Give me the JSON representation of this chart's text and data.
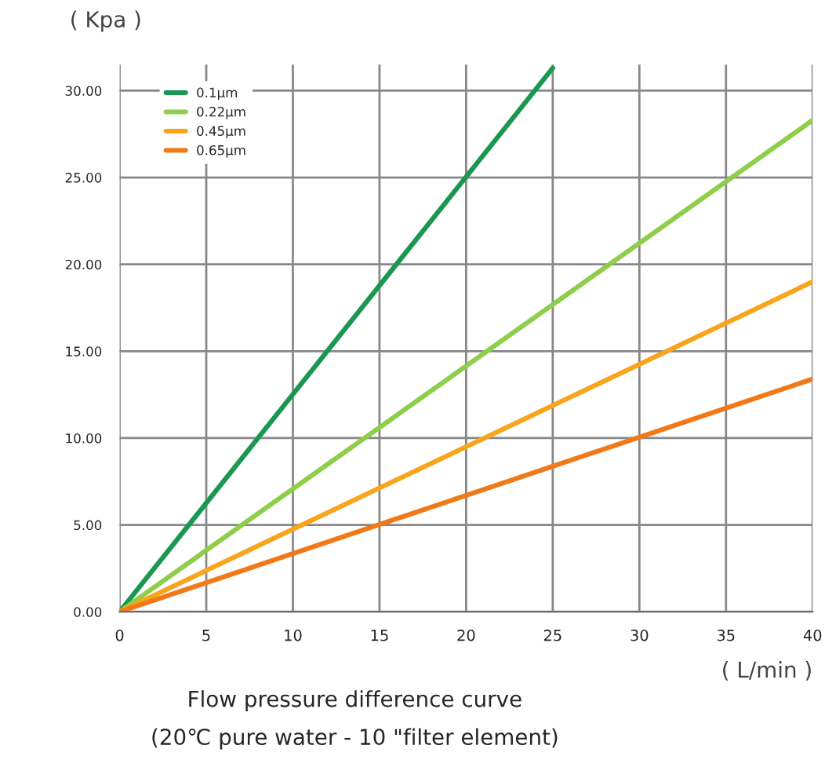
{
  "chart_data": {
    "type": "line",
    "title": "Flow pressure difference curve",
    "subtitle": "(20℃ pure water - 10 \"filter element)",
    "xlabel": "( L/min )",
    "ylabel": "( Kpa )",
    "series": [
      {
        "name": "0.1μm",
        "color": "#1a9850",
        "x": [
          0,
          25
        ],
        "values": [
          0,
          31.3
        ]
      },
      {
        "name": "0.22μm",
        "color": "#8fce4a",
        "x": [
          0,
          40
        ],
        "values": [
          0,
          28.3
        ]
      },
      {
        "name": "0.45μm",
        "color": "#f7a51c",
        "x": [
          0,
          40
        ],
        "values": [
          0,
          19
        ]
      },
      {
        "name": "0.65μm",
        "color": "#f07a1a",
        "x": [
          0,
          40
        ],
        "values": [
          0,
          13.4
        ]
      }
    ],
    "xlim": [
      0,
      40
    ],
    "ylim": [
      0,
      31.5
    ],
    "xticks": [
      0,
      5,
      10,
      15,
      20,
      25,
      30,
      35,
      40
    ],
    "yticks": [
      {
        "value": 0,
        "label": "0.00"
      },
      {
        "value": 5,
        "label": "5.00"
      },
      {
        "value": 10,
        "label": "10.00"
      },
      {
        "value": 15,
        "label": "15.00"
      },
      {
        "value": 20,
        "label": "20.00"
      },
      {
        "value": 25,
        "label": "25.00"
      },
      {
        "value": 30,
        "label": "30.00"
      }
    ],
    "grid": true,
    "legend": "top left",
    "marker": "none",
    "line_style": "solid"
  }
}
